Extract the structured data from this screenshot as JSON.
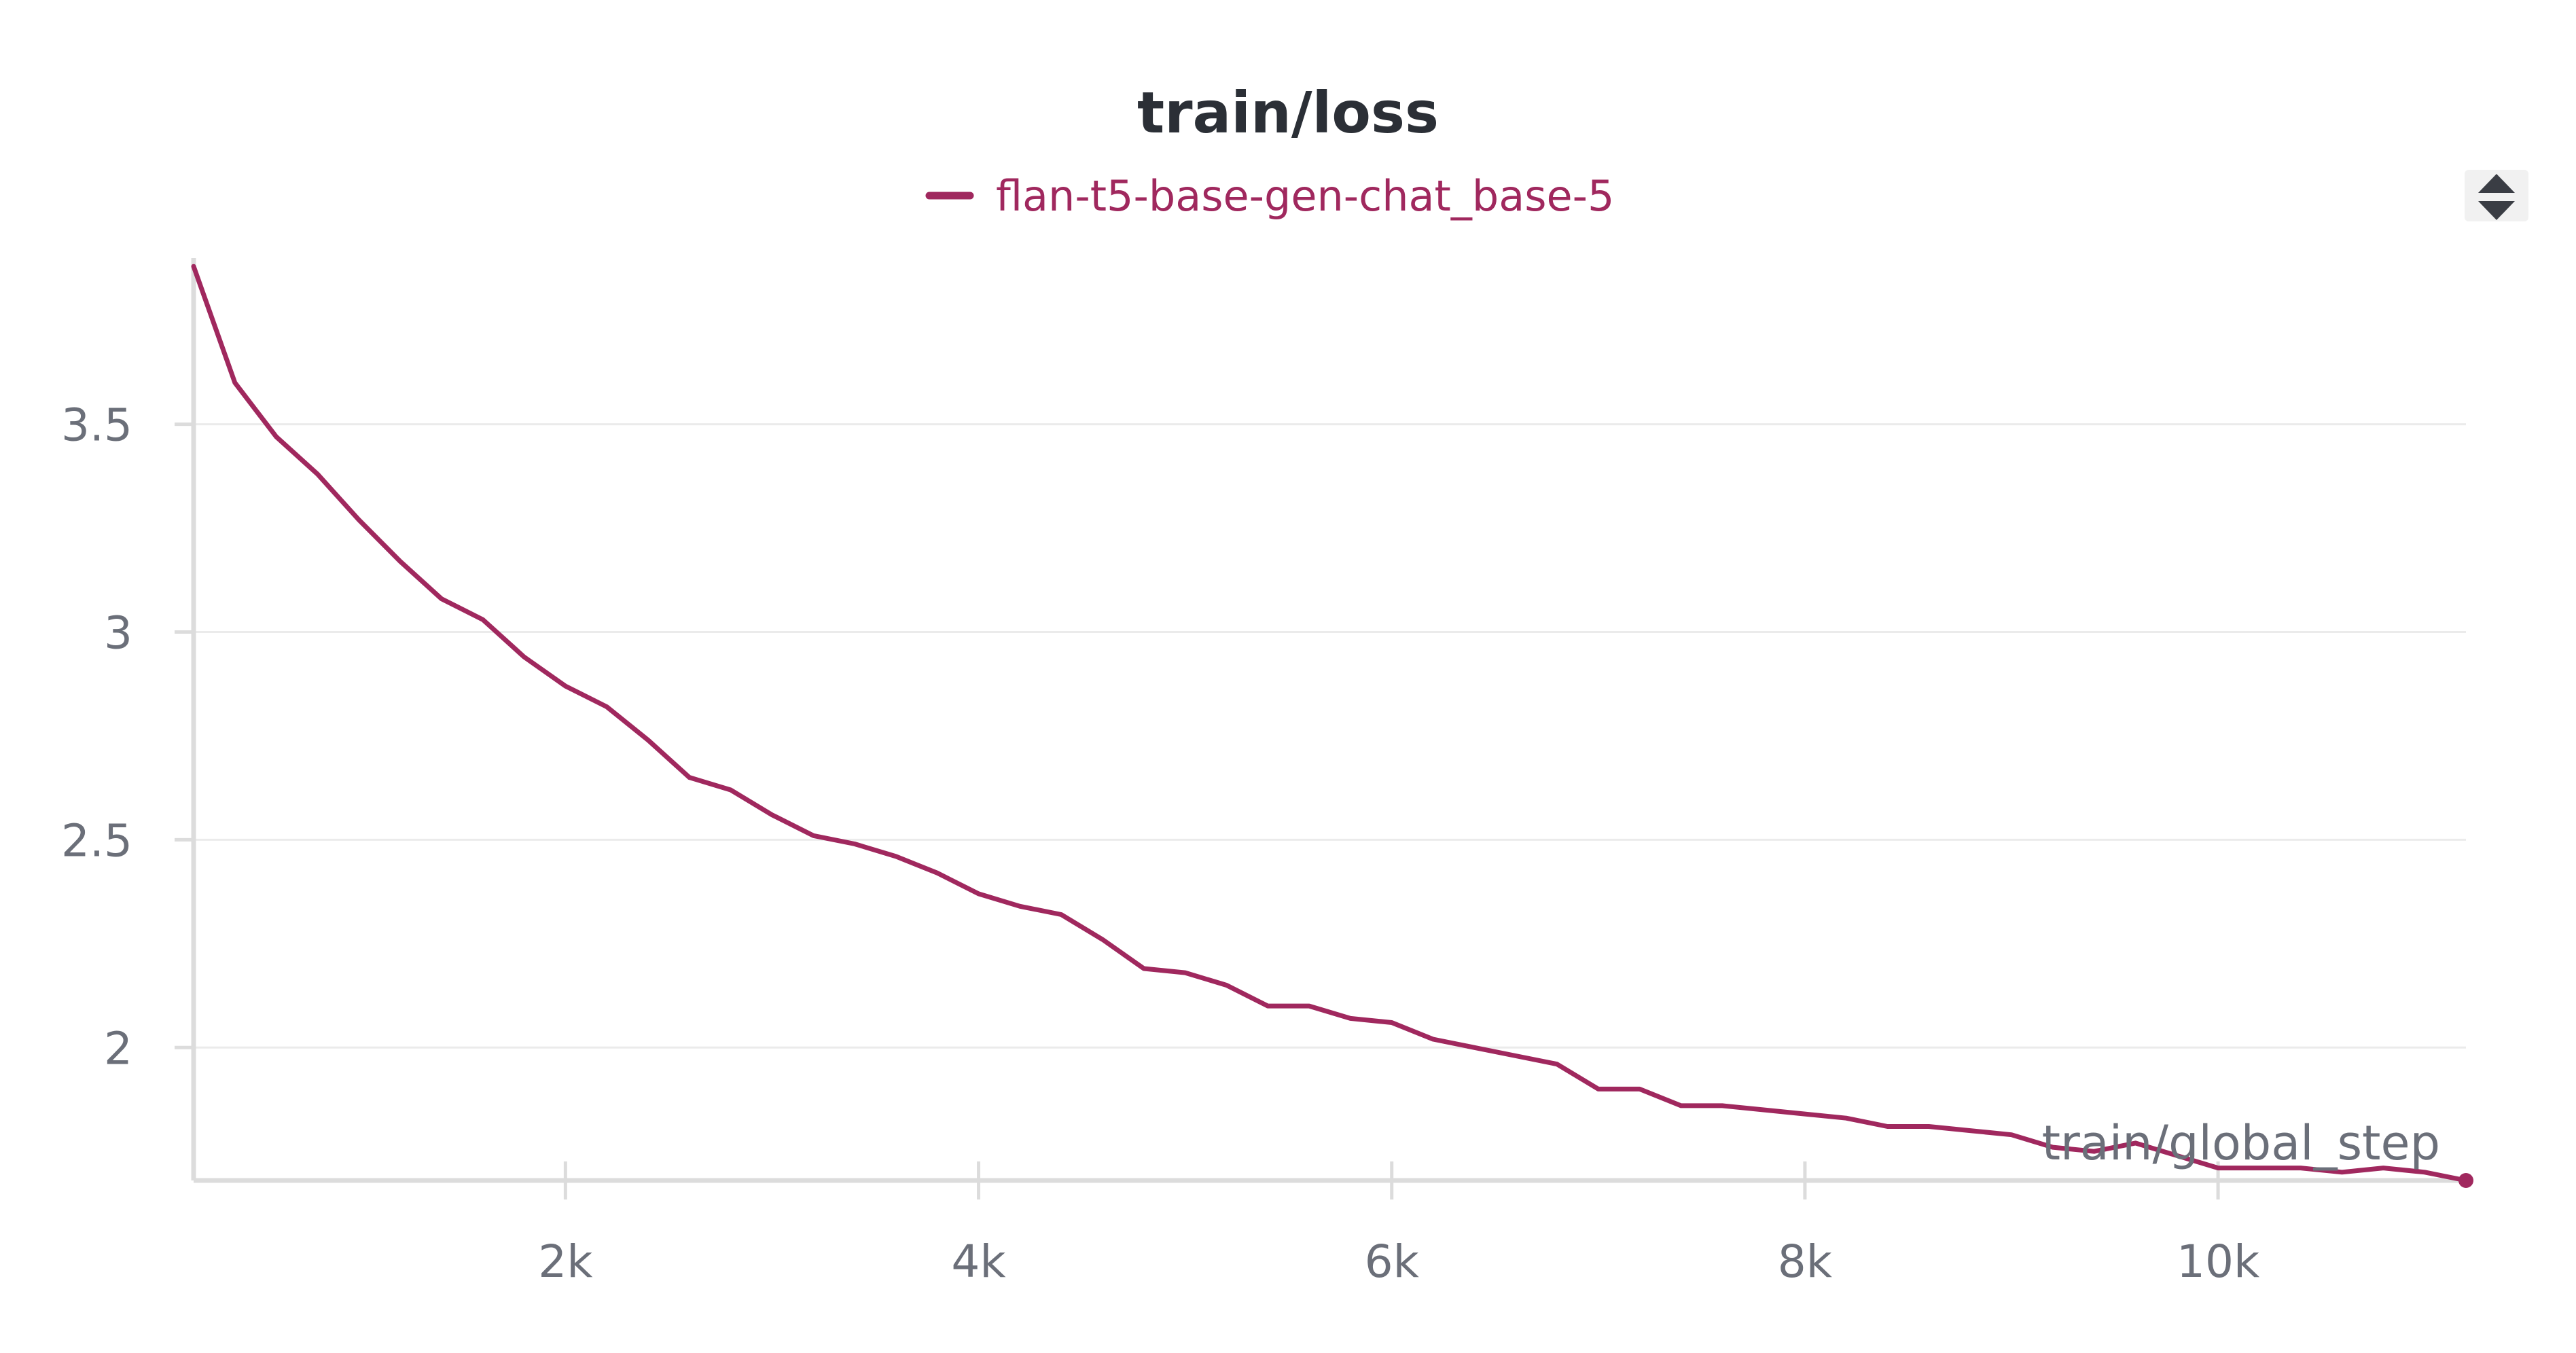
{
  "colors": {
    "series": "#a0285e",
    "axis": "#dcdcdc",
    "grid": "#ebebeb",
    "text": "#2b2f36",
    "tick_text": "#6b6f79"
  },
  "controls": {
    "sort_icon": "up-down-chevrons-icon"
  },
  "chart_data": {
    "type": "line",
    "title": "train/loss",
    "xlabel": "train/global_step",
    "ylabel": "",
    "legend_position": "top-center",
    "grid": true,
    "xlim": [
      200,
      11200
    ],
    "ylim": [
      1.68,
      3.9
    ],
    "x_ticks": [
      2000,
      4000,
      6000,
      8000,
      10000
    ],
    "x_tick_labels": [
      "2k",
      "4k",
      "6k",
      "8k",
      "10k"
    ],
    "y_ticks": [
      2,
      2.5,
      3,
      3.5
    ],
    "y_tick_labels": [
      "2",
      "2.5",
      "3",
      "3.5"
    ],
    "series": [
      {
        "name": "flan-t5-base-gen-chat_base-5",
        "x": [
          200,
          400,
          600,
          800,
          1000,
          1200,
          1400,
          1600,
          1800,
          2000,
          2200,
          2400,
          2600,
          2800,
          3000,
          3200,
          3400,
          3600,
          3800,
          4000,
          4200,
          4400,
          4600,
          4800,
          5000,
          5200,
          5400,
          5600,
          5800,
          6000,
          6200,
          6400,
          6600,
          6800,
          7000,
          7200,
          7400,
          7600,
          7800,
          8000,
          8200,
          8400,
          8600,
          8800,
          9000,
          9200,
          9400,
          9600,
          9800,
          10000,
          10200,
          10400,
          10600,
          10800,
          11000,
          11200
        ],
        "values": [
          3.88,
          3.6,
          3.47,
          3.38,
          3.27,
          3.17,
          3.08,
          3.03,
          2.94,
          2.87,
          2.82,
          2.74,
          2.65,
          2.62,
          2.56,
          2.51,
          2.49,
          2.46,
          2.42,
          2.37,
          2.34,
          2.32,
          2.26,
          2.19,
          2.18,
          2.15,
          2.1,
          2.1,
          2.07,
          2.06,
          2.02,
          2.0,
          1.98,
          1.96,
          1.9,
          1.9,
          1.86,
          1.86,
          1.85,
          1.84,
          1.83,
          1.81,
          1.81,
          1.8,
          1.79,
          1.76,
          1.75,
          1.77,
          1.74,
          1.71,
          1.71,
          1.71,
          1.7,
          1.71,
          1.7,
          1.68
        ]
      }
    ]
  }
}
